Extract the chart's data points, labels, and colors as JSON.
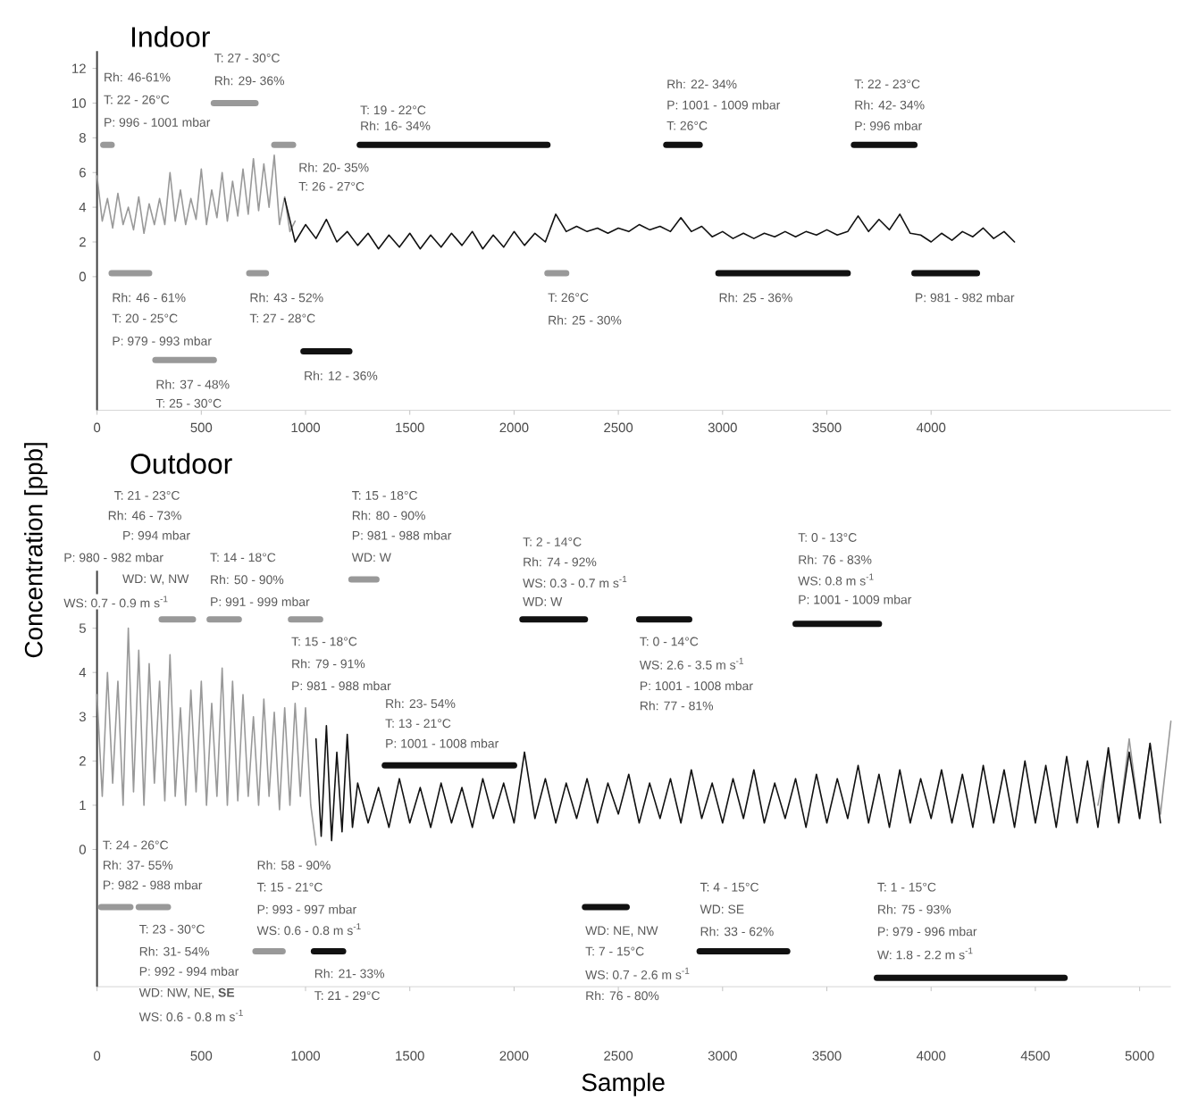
{
  "chart_data": [
    {
      "type": "line",
      "title": "Indoor",
      "xlim": [
        0,
        5150
      ],
      "ylim": [
        -7.7,
        13
      ],
      "xticks": [
        0,
        500,
        1000,
        1500,
        2000,
        2500,
        3000,
        3500,
        4000
      ],
      "yticks": [
        0,
        2,
        4,
        6,
        8,
        10,
        12
      ],
      "series": [
        {
          "color": "#999999",
          "x": [
            0,
            25,
            50,
            75,
            100,
            125,
            150,
            175,
            200,
            225,
            250,
            275,
            300,
            325,
            350,
            375,
            400,
            425,
            450,
            475,
            500,
            525,
            550,
            575,
            600,
            625,
            650,
            675,
            700,
            725,
            750,
            775,
            800,
            825,
            850,
            875,
            900,
            925,
            950
          ],
          "values": [
            5.8,
            3.2,
            4.5,
            2.8,
            4.8,
            3.0,
            4.0,
            2.7,
            4.6,
            2.5,
            4.2,
            3.0,
            4.5,
            3.0,
            6.0,
            3.2,
            5.0,
            3.0,
            4.5,
            3.3,
            6.2,
            3.0,
            5.0,
            3.4,
            6.0,
            3.2,
            5.5,
            3.5,
            6.2,
            3.6,
            6.8,
            3.8,
            6.5,
            4.0,
            7.0,
            3.0,
            4.6,
            2.6,
            3.2
          ]
        },
        {
          "color": "#111111",
          "x": [
            900,
            950,
            1000,
            1050,
            1100,
            1150,
            1200,
            1250,
            1300,
            1350,
            1400,
            1450,
            1500,
            1550,
            1600,
            1650,
            1700,
            1750,
            1800,
            1850,
            1900,
            1950,
            2000,
            2050,
            2100,
            2150,
            2200,
            2250,
            2300,
            2350,
            2400,
            2450,
            2500,
            2550,
            2600,
            2650,
            2700,
            2750,
            2800,
            2850,
            2900,
            2950,
            3000,
            3050,
            3100,
            3150,
            3200,
            3250,
            3300,
            3350,
            3400,
            3450,
            3500,
            3550,
            3600,
            3650,
            3700,
            3750,
            3800,
            3850,
            3900,
            3950,
            4000,
            4050,
            4100,
            4150,
            4200,
            4250,
            4300,
            4350,
            4400
          ],
          "values": [
            4.5,
            2.0,
            3.0,
            2.2,
            3.3,
            2.0,
            2.6,
            1.8,
            2.5,
            1.6,
            2.4,
            1.7,
            2.5,
            1.6,
            2.4,
            1.7,
            2.5,
            1.8,
            2.6,
            1.6,
            2.4,
            1.7,
            2.6,
            1.8,
            2.5,
            2.0,
            3.6,
            2.6,
            2.9,
            2.6,
            2.8,
            2.5,
            2.8,
            2.6,
            3.0,
            2.7,
            2.9,
            2.6,
            3.4,
            2.6,
            2.9,
            2.3,
            2.6,
            2.2,
            2.5,
            2.2,
            2.5,
            2.3,
            2.6,
            2.3,
            2.6,
            2.4,
            2.7,
            2.4,
            2.6,
            3.5,
            2.6,
            3.3,
            2.7,
            3.6,
            2.5,
            2.4,
            2.0,
            2.5,
            2.1,
            2.6,
            2.3,
            2.8,
            2.2,
            2.6,
            2.0
          ]
        },
        {
          "color": "#999999",
          "x": [
            30,
            70
          ],
          "values": [
            7.6,
            7.6
          ]
        },
        {
          "color": "#999999",
          "x": [
            560,
            760
          ],
          "values": [
            10.0,
            10.0
          ]
        },
        {
          "color": "#999999",
          "x": [
            850,
            940
          ],
          "values": [
            7.6,
            7.6
          ]
        },
        {
          "color": "#999999",
          "x": [
            70,
            250
          ],
          "values": [
            0.2,
            0.2
          ]
        },
        {
          "color": "#999999",
          "x": [
            280,
            560
          ],
          "values": [
            -4.8,
            -4.8
          ]
        },
        {
          "color": "#999999",
          "x": [
            730,
            810
          ],
          "values": [
            0.2,
            0.2
          ]
        },
        {
          "color": "#999999",
          "x": [
            2160,
            2250
          ],
          "values": [
            0.2,
            0.2
          ]
        },
        {
          "color": "#111111",
          "x": [
            990,
            1210
          ],
          "values": [
            -4.3,
            -4.3
          ]
        },
        {
          "color": "#111111",
          "x": [
            1260,
            2160
          ],
          "values": [
            7.6,
            7.6
          ]
        },
        {
          "color": "#111111",
          "x": [
            2730,
            2890
          ],
          "values": [
            7.6,
            7.6
          ]
        },
        {
          "color": "#111111",
          "x": [
            3630,
            3920
          ],
          "values": [
            7.6,
            7.6
          ]
        },
        {
          "color": "#111111",
          "x": [
            2980,
            3600
          ],
          "values": [
            0.2,
            0.2
          ]
        },
        {
          "color": "#111111",
          "x": [
            3920,
            4220
          ],
          "values": [
            0.2,
            0.2
          ]
        }
      ],
      "annotations": [
        "Rh: 46-61%",
        "T: 22 - 26°C",
        "P: 996 - 1001 mbar",
        "T: 27 - 30°C",
        "Rh: 29- 36%",
        "Rh: 20- 35%",
        "T: 26 - 27°C",
        "T: 19 - 22°C",
        "Rh: 16- 34%",
        "Rh: 22- 34%",
        "P: 1001 - 1009 mbar",
        "T: 26°C",
        "T: 22 - 23°C",
        "Rh: 42- 34%",
        "P: 996 mbar",
        "Rh: 46 - 61%",
        "T: 20 - 25°C",
        "P: 979 - 993 mbar",
        "Rh: 37 - 48%",
        "T: 25 - 30°C",
        "Rh: 43 - 52%",
        "T: 27 - 28°C",
        "Rh: 12 - 36%",
        "T: 26°C",
        "Rh: 25 - 30%",
        "Rh: 25 - 36%",
        "P: 981 - 982 mbar"
      ]
    },
    {
      "type": "line",
      "title": "Outdoor",
      "xlabel": "Sample",
      "ylabel": "Concentration [ppb]",
      "xlim": [
        0,
        5150
      ],
      "ylim": [
        -3.1,
        6.3
      ],
      "xticks": [
        0,
        500,
        1000,
        1500,
        2000,
        2500,
        3000,
        3500,
        4000,
        4500,
        5000
      ],
      "yticks": [
        0,
        1,
        2,
        3,
        4,
        5
      ],
      "series": [
        {
          "color": "#999999",
          "x": [
            0,
            25,
            50,
            75,
            100,
            125,
            150,
            175,
            200,
            225,
            250,
            275,
            300,
            325,
            350,
            375,
            400,
            425,
            450,
            475,
            500,
            525,
            550,
            575,
            600,
            625,
            650,
            675,
            700,
            725,
            750,
            775,
            800,
            825,
            850,
            875,
            900,
            925,
            950,
            975,
            1000,
            1025,
            1050,
            1100,
            4800,
            4850,
            4900,
            4950,
            5000,
            5050,
            5100,
            5150
          ],
          "values": [
            3.5,
            1.2,
            4.0,
            1.5,
            3.8,
            1.0,
            5.0,
            1.3,
            4.5,
            1.0,
            4.2,
            1.5,
            3.8,
            1.1,
            4.4,
            1.2,
            3.2,
            1.0,
            3.6,
            1.3,
            3.8,
            1.0,
            3.3,
            1.2,
            4.1,
            1.0,
            3.8,
            1.1,
            3.5,
            1.2,
            3.0,
            1.0,
            3.4,
            1.2,
            3.1,
            0.9,
            3.2,
            1.0,
            3.3,
            1.2,
            3.2,
            1.0,
            0.1,
            null,
            1.0,
            2.2,
            0.6,
            2.5,
            0.7,
            2.4,
            0.8,
            2.9
          ]
        },
        {
          "color": "#111111",
          "x": [
            1050,
            1075,
            1100,
            1125,
            1150,
            1175,
            1200,
            1225,
            1250,
            1300,
            1350,
            1400,
            1450,
            1500,
            1550,
            1600,
            1650,
            1700,
            1750,
            1800,
            1850,
            1900,
            1950,
            2000,
            2050,
            2100,
            2150,
            2200,
            2250,
            2300,
            2350,
            2400,
            2450,
            2500,
            2550,
            2600,
            2650,
            2700,
            2750,
            2800,
            2850,
            2900,
            2950,
            3000,
            3050,
            3100,
            3150,
            3200,
            3250,
            3300,
            3350,
            3400,
            3450,
            3500,
            3550,
            3600,
            3650,
            3700,
            3750,
            3800,
            3850,
            3900,
            3950,
            4000,
            4050,
            4100,
            4150,
            4200,
            4250,
            4300,
            4350,
            4400,
            4450,
            4500,
            4550,
            4600,
            4650,
            4700,
            4750,
            4800,
            4850,
            4900,
            4950,
            5000,
            5050,
            5100
          ],
          "values": [
            2.5,
            0.3,
            2.8,
            0.2,
            2.2,
            0.4,
            2.6,
            0.5,
            1.5,
            0.6,
            1.4,
            0.5,
            1.6,
            0.6,
            1.4,
            0.5,
            1.5,
            0.6,
            1.4,
            0.5,
            1.6,
            0.7,
            1.5,
            0.6,
            2.2,
            0.7,
            1.6,
            0.6,
            1.5,
            0.7,
            1.6,
            0.6,
            1.5,
            0.8,
            1.7,
            0.6,
            1.5,
            0.7,
            1.6,
            0.6,
            1.8,
            0.7,
            1.5,
            0.6,
            1.6,
            0.7,
            1.8,
            0.6,
            1.5,
            0.7,
            1.6,
            0.5,
            1.7,
            0.6,
            1.6,
            0.7,
            1.9,
            0.6,
            1.7,
            0.5,
            1.8,
            0.6,
            1.6,
            0.7,
            1.8,
            0.6,
            1.7,
            0.5,
            1.9,
            0.6,
            1.8,
            0.5,
            2.0,
            0.6,
            1.9,
            0.5,
            2.1,
            0.6,
            2.0,
            0.5,
            2.3,
            0.6,
            2.2,
            0.7,
            2.4,
            0.6
          ]
        },
        {
          "color": "#999999",
          "x": [
            310,
            460
          ],
          "values": [
            5.2,
            5.2
          ]
        },
        {
          "color": "#999999",
          "x": [
            540,
            680
          ],
          "values": [
            5.2,
            5.2
          ]
        },
        {
          "color": "#999999",
          "x": [
            930,
            1070
          ],
          "values": [
            5.2,
            5.2
          ]
        },
        {
          "color": "#999999",
          "x": [
            1220,
            1340
          ],
          "values": [
            6.1,
            6.1
          ]
        },
        {
          "color": "#999999",
          "x": [
            20,
            160
          ],
          "values": [
            -1.3,
            -1.3
          ]
        },
        {
          "color": "#999999",
          "x": [
            200,
            340
          ],
          "values": [
            -1.3,
            -1.3
          ]
        },
        {
          "color": "#999999",
          "x": [
            760,
            890
          ],
          "values": [
            -2.3,
            -2.3
          ]
        },
        {
          "color": "#111111",
          "x": [
            1380,
            2000
          ],
          "values": [
            1.9,
            1.9
          ]
        },
        {
          "color": "#111111",
          "x": [
            2040,
            2340
          ],
          "values": [
            5.2,
            5.2
          ]
        },
        {
          "color": "#111111",
          "x": [
            2600,
            2840
          ],
          "values": [
            5.2,
            5.2
          ]
        },
        {
          "color": "#111111",
          "x": [
            3350,
            3750
          ],
          "values": [
            5.1,
            5.1
          ]
        },
        {
          "color": "#111111",
          "x": [
            1040,
            1180
          ],
          "values": [
            -2.3,
            -2.3
          ]
        },
        {
          "color": "#111111",
          "x": [
            2340,
            2540
          ],
          "values": [
            -1.3,
            -1.3
          ]
        },
        {
          "color": "#111111",
          "x": [
            2890,
            3310
          ],
          "values": [
            -2.3,
            -2.3
          ]
        },
        {
          "color": "#111111",
          "x": [
            3740,
            4640
          ],
          "values": [
            -2.9,
            -2.9
          ]
        }
      ],
      "annotations": [
        "T: 21 - 23°C",
        "Rh: 46 - 73%",
        "P: 994 mbar",
        "P: 980 - 982 mbar",
        "WD: W, NW",
        "WS: 0.7 - 0.9 m s$^{-1}$",
        "T: 14 - 18°C",
        "Rh: 50 - 90%",
        "P: 991 - 999 mbar",
        "T: 15 - 18°C",
        "Rh: 79 - 91%",
        "P: 981 - 988 mbar",
        "T: 15 - 18°C",
        "Rh: 80 - 90%",
        "P: 981 - 988 mbar",
        "WD: W",
        "Rh: 23- 54%",
        "T: 13 - 21°C",
        "P: 1001 - 1008 mbar",
        "T: 2 - 14°C",
        "Rh: 74 - 92%",
        "WS: 0.3 - 0.7 m s$^{-1}$",
        "WD: W",
        "T: 0 - 14°C",
        "WS: 2.6 - 3.5 m s$^{-1}$",
        "P: 1001 - 1008 mbar",
        "Rh: 77 - 81%",
        "T: 0 - 13°C",
        "Rh: 76 - 83%",
        "WS: 0.8 m s$^{-1}$",
        "P: 1001 - 1009 mbar",
        "T: 24 - 26°C",
        "Rh: 37- 55%",
        "P: 982 - 988 mbar",
        "T: 23 - 30°C",
        "Rh: 31- 54%",
        "P: 992 - 994 mbar",
        "WD: NW, NE, **SE**",
        "WS: 0.6 - 0.8 m s$^{-1}$",
        "Rh: 58 - 90%",
        "T: 15 - 21°C",
        "P: 993 - 997 mbar",
        "WS: 0.6 - 0.8 m s$^{-1}$",
        "Rh: 21- 33%",
        "T: 21 - 29°C",
        "WD: NE, NW",
        "T: 7 - 15°C",
        "WS: 0.7 - 2.6 m s$^{-1}$",
        "Rh: 76 - 80%",
        "T: 4 - 15°C",
        "WD: SE",
        "Rh: 33 - 62%",
        "T: 1 - 15°C",
        "Rh: 75 - 93%",
        "P: 979 - 996 mbar",
        "W: 1.8 - 2.2 m s$^{-1}$"
      ]
    }
  ]
}
